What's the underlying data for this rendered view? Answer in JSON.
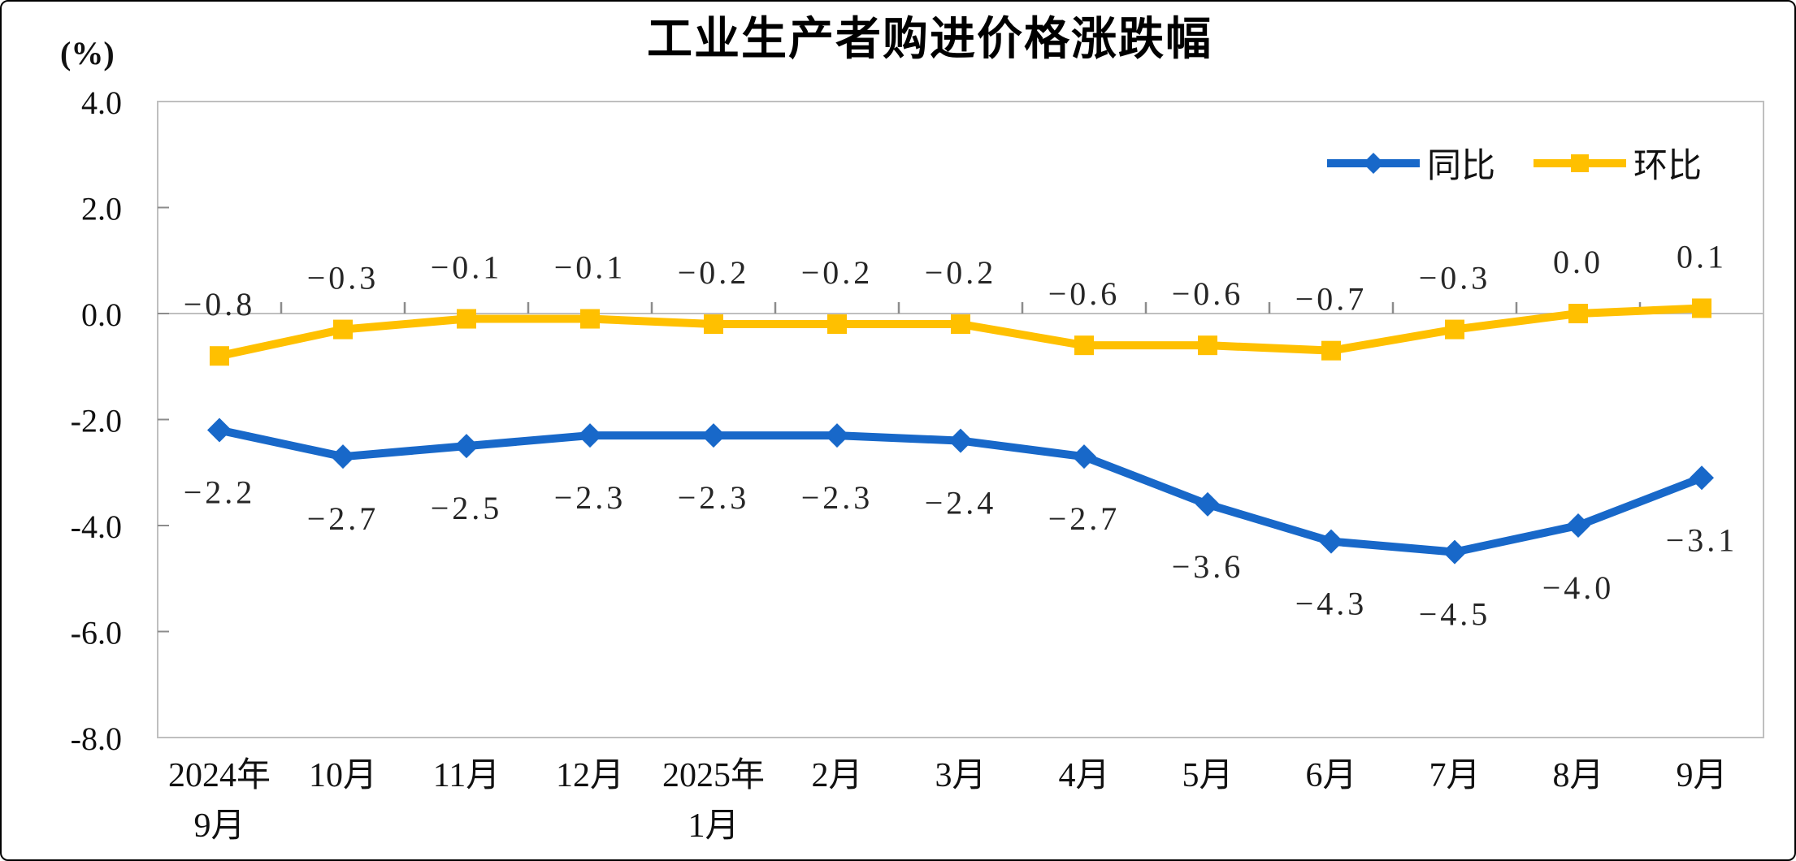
{
  "chart_data": {
    "type": "line",
    "title": "工业生产者购进价格涨跌幅",
    "unit_label": "(%)",
    "categories": [
      [
        "2024年",
        "9月"
      ],
      [
        "10月"
      ],
      [
        "11月"
      ],
      [
        "12月"
      ],
      [
        "2025年",
        "1月"
      ],
      [
        "2月"
      ],
      [
        "3月"
      ],
      [
        "4月"
      ],
      [
        "5月"
      ],
      [
        "6月"
      ],
      [
        "7月"
      ],
      [
        "8月"
      ],
      [
        "9月"
      ]
    ],
    "series": [
      {
        "name": "同比",
        "color": "#1868C9",
        "marker": "diamond",
        "label_position": "below",
        "values": [
          -2.2,
          -2.7,
          -2.5,
          -2.3,
          -2.3,
          -2.3,
          -2.4,
          -2.7,
          -3.6,
          -4.3,
          -4.5,
          -4.0,
          -3.1
        ]
      },
      {
        "name": "环比",
        "color": "#FFC000",
        "marker": "square",
        "label_position": "above",
        "values": [
          -0.8,
          -0.3,
          -0.1,
          -0.1,
          -0.2,
          -0.2,
          -0.2,
          -0.6,
          -0.6,
          -0.7,
          -0.3,
          0.0,
          0.1
        ]
      }
    ],
    "y_axis": {
      "min": -8.0,
      "max": 4.0,
      "step": 2.0,
      "tick_labels": [
        "4.0",
        "2.0",
        "0.0",
        "-2.0",
        "-4.0",
        "-6.0",
        "-8.0"
      ]
    },
    "data_labels": true,
    "grid": "zero-line-only",
    "legend_position": "top-right",
    "style": {
      "frame_color": "#BFBFBF",
      "zero_line_color": "#BFBFBF",
      "tick_color": "#8C8C8C",
      "label_color": "#262626",
      "axis_text_color": "#111111",
      "background": "#FFFFFF"
    }
  }
}
